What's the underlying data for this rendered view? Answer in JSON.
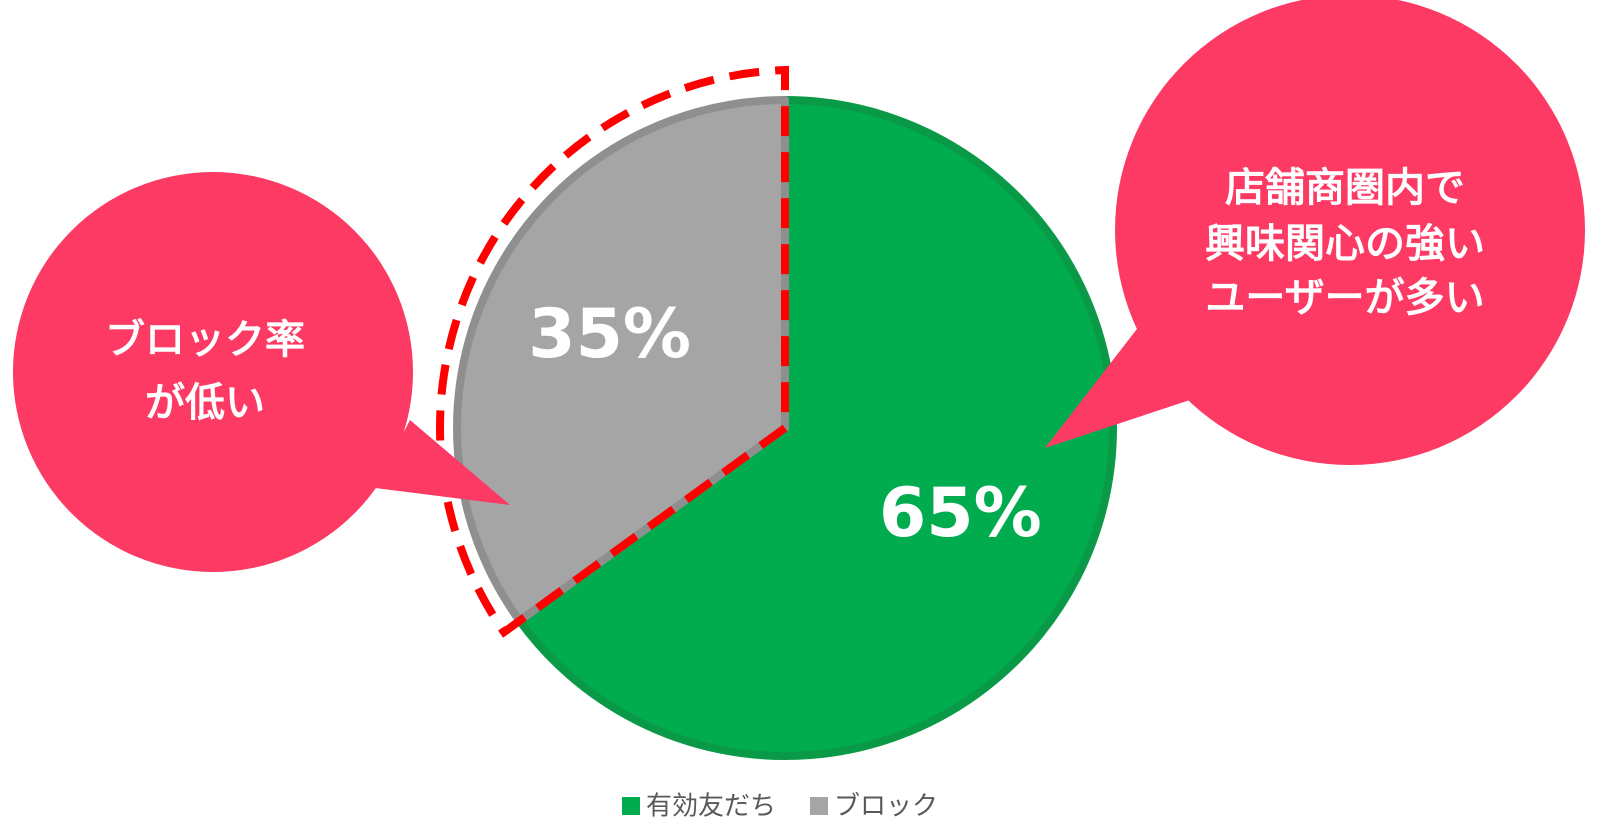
{
  "chart_data": {
    "type": "pie",
    "categories": [
      "有効友だち",
      "ブロック"
    ],
    "values": [
      65,
      35
    ],
    "value_labels": [
      "65%",
      "35%"
    ],
    "colors": [
      "#00ac4e",
      "#a5a5a5"
    ],
    "annotations": [
      {
        "lines": [
          "ブロック率",
          "が低い"
        ]
      },
      {
        "lines": [
          "店舗商圏内で",
          "興味関心の強い",
          "ユーザーが多い"
        ]
      }
    ]
  }
}
